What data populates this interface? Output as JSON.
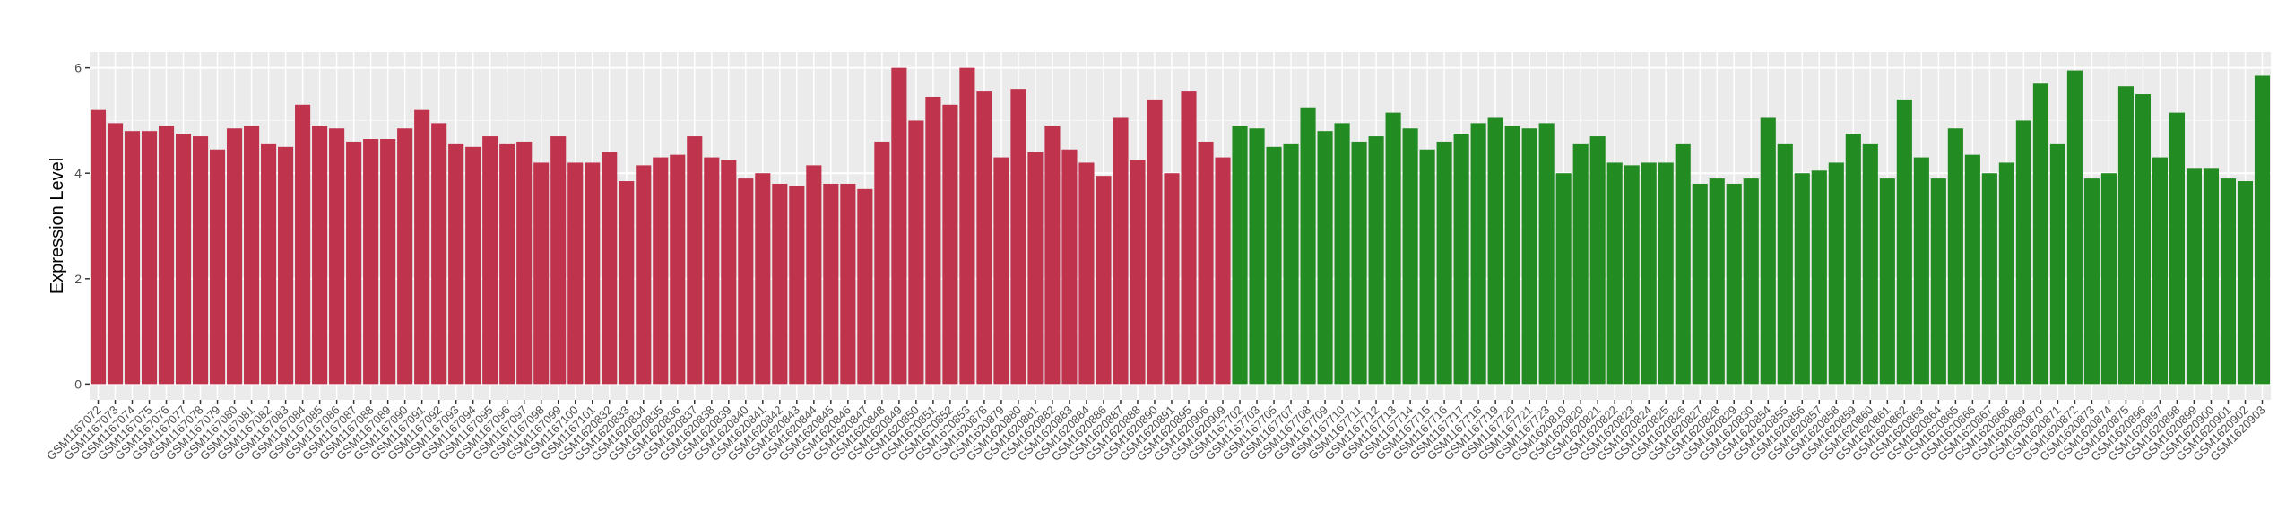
{
  "chart_data": {
    "type": "bar",
    "y_label": "Expression Level",
    "categories": [
      "GSM1167072",
      "GSM1167073",
      "GSM1167074",
      "GSM1167075",
      "GSM1167076",
      "GSM1167077",
      "GSM1167078",
      "GSM1167079",
      "GSM1167080",
      "GSM1167081",
      "GSM1167082",
      "GSM1167083",
      "GSM1167084",
      "GSM1167085",
      "GSM1167086",
      "GSM1167087",
      "GSM1167088",
      "GSM1167089",
      "GSM1167090",
      "GSM1167091",
      "GSM1167092",
      "GSM1167093",
      "GSM1167094",
      "GSM1167095",
      "GSM1167096",
      "GSM1167097",
      "GSM1167098",
      "GSM1167099",
      "GSM1167100",
      "GSM1167101",
      "GSM1620832",
      "GSM1620833",
      "GSM1620834",
      "GSM1620835",
      "GSM1620836",
      "GSM1620837",
      "GSM1620838",
      "GSM1620839",
      "GSM1620840",
      "GSM1620841",
      "GSM1620842",
      "GSM1620843",
      "GSM1620844",
      "GSM1620845",
      "GSM1620846",
      "GSM1620847",
      "GSM1620848",
      "GSM1620849",
      "GSM1620850",
      "GSM1620851",
      "GSM1620852",
      "GSM1620853",
      "GSM1620878",
      "GSM1620879",
      "GSM1620880",
      "GSM1620881",
      "GSM1620882",
      "GSM1620883",
      "GSM1620884",
      "GSM1620886",
      "GSM1620887",
      "GSM1620888",
      "GSM1620890",
      "GSM1620891",
      "GSM1620895",
      "GSM1620906",
      "GSM1620909",
      "GSM1167702",
      "GSM1167703",
      "GSM1167705",
      "GSM1167707",
      "GSM1167708",
      "GSM1167709",
      "GSM1167710",
      "GSM1167711",
      "GSM1167712",
      "GSM1167713",
      "GSM1167714",
      "GSM1167715",
      "GSM1167716",
      "GSM1167717",
      "GSM1167718",
      "GSM1167719",
      "GSM1167720",
      "GSM1167721",
      "GSM1167723",
      "GSM1620819",
      "GSM1620820",
      "GSM1620821",
      "GSM1620822",
      "GSM1620823",
      "GSM1620824",
      "GSM1620825",
      "GSM1620826",
      "GSM1620827",
      "GSM1620828",
      "GSM1620829",
      "GSM1620830",
      "GSM1620854",
      "GSM1620855",
      "GSM1620856",
      "GSM1620857",
      "GSM1620858",
      "GSM1620859",
      "GSM1620860",
      "GSM1620861",
      "GSM1620862",
      "GSM1620863",
      "GSM1620864",
      "GSM1620865",
      "GSM1620866",
      "GSM1620867",
      "GSM1620868",
      "GSM1620869",
      "GSM1620870",
      "GSM1620871",
      "GSM1620872",
      "GSM1620873",
      "GSM1620874",
      "GSM1620875",
      "GSM1620896",
      "GSM1620897",
      "GSM1620898",
      "GSM1620899",
      "GSM1620900",
      "GSM1620901",
      "GSM1620902",
      "GSM1620903"
    ],
    "series": [
      {
        "color": "#c0334d",
        "values": [
          5.2,
          4.95,
          4.8,
          4.8,
          4.9,
          4.75,
          4.7,
          4.45,
          4.85,
          4.9,
          4.55,
          4.5,
          5.3,
          4.9,
          4.85,
          4.6,
          4.65,
          4.65,
          4.85,
          5.2,
          4.95,
          4.55,
          4.5,
          4.7,
          4.55,
          4.6,
          4.2,
          4.7,
          4.2,
          4.2,
          4.4,
          3.85,
          4.15,
          4.3,
          4.35,
          4.7,
          4.3,
          4.25,
          3.9,
          4.0,
          3.8,
          3.75,
          4.15,
          3.8,
          3.8,
          3.7,
          4.6,
          6.0,
          5.0,
          5.45,
          5.3,
          6.0,
          5.55,
          4.3,
          5.6,
          4.4,
          4.9,
          4.45,
          4.2,
          3.95,
          5.05,
          4.25,
          5.4,
          4.0,
          5.55,
          4.6,
          4.3,
          null,
          null,
          null,
          null,
          null,
          null,
          null,
          null,
          null,
          null,
          null,
          null,
          null,
          null,
          null,
          null,
          null,
          null,
          null,
          null,
          null,
          null,
          null,
          null,
          null,
          null,
          null,
          null,
          null,
          null,
          null,
          null,
          null,
          null,
          null,
          null,
          null,
          null,
          null,
          null,
          null,
          null,
          null,
          null,
          null,
          null,
          null,
          null,
          null,
          null,
          null,
          null,
          null,
          null,
          null,
          null,
          null,
          null,
          null,
          null,
          null
        ]
      },
      {
        "color": "#228b22",
        "values": [
          null,
          null,
          null,
          null,
          null,
          null,
          null,
          null,
          null,
          null,
          null,
          null,
          null,
          null,
          null,
          null,
          null,
          null,
          null,
          null,
          null,
          null,
          null,
          null,
          null,
          null,
          null,
          null,
          null,
          null,
          null,
          null,
          null,
          null,
          null,
          null,
          null,
          null,
          null,
          null,
          null,
          null,
          null,
          null,
          null,
          null,
          null,
          null,
          null,
          null,
          null,
          null,
          null,
          null,
          null,
          null,
          null,
          null,
          null,
          null,
          null,
          null,
          null,
          null,
          null,
          null,
          null,
          4.9,
          4.85,
          4.5,
          4.55,
          5.25,
          4.8,
          4.95,
          4.6,
          4.7,
          5.15,
          4.85,
          4.45,
          4.6,
          4.75,
          4.95,
          5.05,
          4.9,
          4.85,
          4.95,
          4.0,
          4.55,
          4.7,
          4.2,
          4.15,
          4.2,
          4.2,
          4.55,
          3.8,
          3.9,
          3.8,
          3.9,
          5.05,
          4.55,
          4.0,
          4.05,
          4.2,
          4.75,
          4.55,
          3.9,
          5.4,
          4.3,
          3.9,
          4.85,
          4.35,
          4.0,
          4.2,
          5.0,
          5.7,
          4.55,
          5.95,
          3.9,
          4.0,
          5.65,
          5.5,
          4.3,
          5.15,
          4.1,
          4.1,
          3.9,
          3.85,
          5.85
        ]
      }
    ],
    "ylim": [
      -0.3,
      6.3
    ],
    "yticks": [
      0,
      2,
      4,
      6
    ],
    "yminor": [
      1,
      3,
      5
    ],
    "grid": true,
    "panel_color": "#ebebeb"
  }
}
